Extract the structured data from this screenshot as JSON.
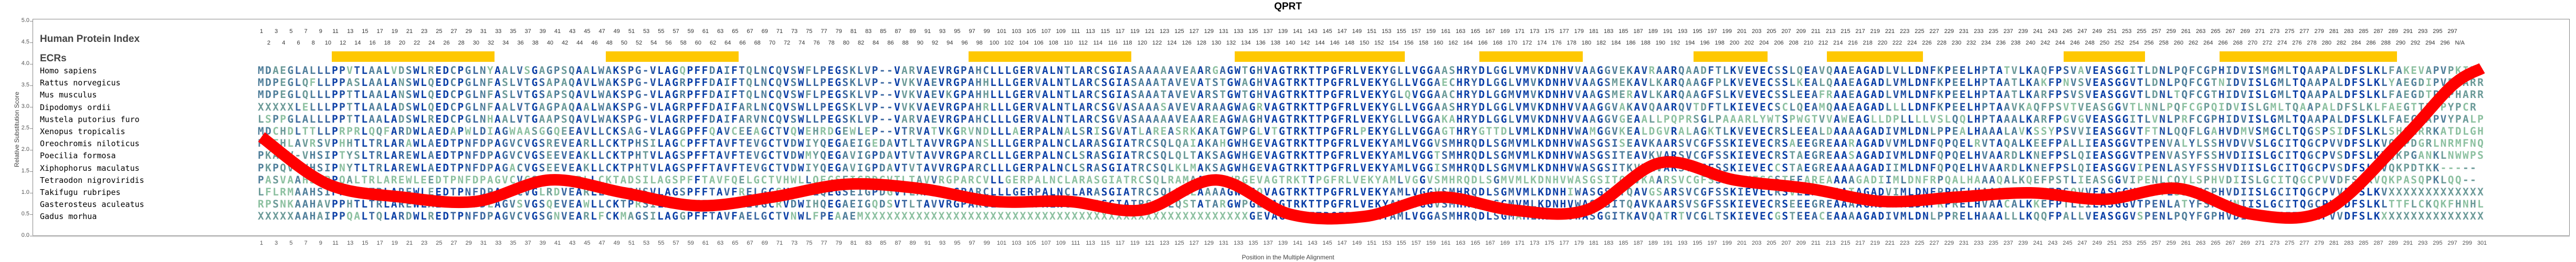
{
  "title": "QPRT",
  "headers": {
    "index_label": "Human Protein Index",
    "ecr_label": "ECRs"
  },
  "species": [
    {
      "name": "Homo sapiens",
      "seq": "MDAEGLALLLPPVTLAALVDSWLREDCPGLNYAALVSGAGPSQAALWAKSPG-VLAGQPFFDAIFTQLNCQVSWFLPEGSKLVP--VARVAEVRGPAHCLLLGERVALNTLARCSGIASAAAAAVEAARGAGWTGHVAGTRKTTPGFRLVEKYGLLVGGAASHRYDLGGLVMVKDNHVVAAGGVEKAVRAARQAADFTLKVEVECSSLQEAVQAAEAGADLVLLDNFKPEELHPTATVLKAQFPSVAVEASGGITLDNLPQFCGPHIDVISMGMLTQAAPALDFSLKLFAKEVAPVPKIH-"
    },
    {
      "name": "Rattus norvegicus",
      "seq": "MDPEGLQFLLPPASLAALANSWLQEDCPGLNFASLVTGSAPAQAVLWAKSPG-VLAGRPFFDAIFTQLNCQVSWLLPEGSKLVP--VVKVAEVRGPAHHLLLGERVALNTLARCSGIASAAATAVEVATSTGWAGHVAGTRKTTPGFRLVEKYGLLVGGAECHRYDLGGLVMVKDNHVVAAGSMEKAVLKARQAAGFPLKVEVECSSLKEALQAAEAGADLVMLDNFKPEELHPTAATLKAKFPNVSVEASGGVTLDNLPQFCGTNIDVISLGMLTQAAPALDFSLKLYAEGDIPVPHARR"
    },
    {
      "name": "Mus musculus",
      "seq": "MDPEGLQLLLPPTTLAALANSWLQEDCPGLNFASLVTGSAPSQAVLWAKSPG-VLAGRPFFDAIFTQLNCQVSWFLPEGSKLVP--VVKVAEVKGPAHHLLLGERVALNTLARCSGIASAAATAVEVARSTGWTGHVAGTRKTTPGFRLVEKYGLQVGGAACHRYDLGGMVMVKDNHVVAAGSMERAVLKARQAAGFSLKVEVECSSLEEAFRAAEAGADLVMLDNFKPEELHPTAATLKARFPSVSVEASGGVTLDNLTQFCGTHIDVISLGMLTQAAPALDFSLKLFAEGDTPVPHARR"
    },
    {
      "name": "Dipodomys ordii",
      "seq": "XXXXXLELLLPPTTLAALADSWLQEDCPGLNFAALVTGAGPAQAALWAKSPG-VLAGRPFFDAIFARLNCQVSWLLPEGSKLVP--VVKVAEVRGPAHRLLLGERVALNTLARCSGVASAAASAVEVARAAGWAGRVAGTRKTTPGFRLVEKYGLLVGGAASHRYDLGGLVMVKDNHVVAAGGVAKAVQAARQVTDFTLKIEVECSCLQEAMQAAEAGADLLLLDNFKPEELHPTAAVKAQFPSVTVEASGGVTLNNLPQFCGPQIDVISLGMLTQAAPALDFSLKLFAEGTTPVPYPCR"
    },
    {
      "name": "Mustela putorius furo",
      "seq": "LSPPGLALLLPPTTLAALADSWLREDCPGLNHAALVTGAAPSQAVLWAKSPG-VLAGRPFFDAIFARVNCQVSWLLPEGSKLVP--VARVAEVRGPAHCLLLGERVALNTLARCSGVASAAAAAVEAAREAGWAGHVAGTRKTTPGFRLVEKYGLLVGGAKAHRYDLGGLVMVKDNHVVAAGGVGEAALLPQPRSGLPAAARLYWTSPWGTVVAWEAGLLDPLLLLVSLQQLHPTAAALKARFPGVGVEASGGITLVNLPRFCGPHIDVISLGMLTQAAPALDFSLKLFAEGTAPVYPALP"
    },
    {
      "name": "Xenopus tropicalis",
      "seq": "MDCHDLTTLLPRPRLQQFARDWLAEDAPWLDIAGWAASGGQEEAVLLCKSAG-VLAGGPFFQAVCEEAGCTVQWEHRDGEWLEP--VTRVATVKGRVNDLLLAERPALNALSRISGVATLAREASRKAKATGWPGLVTGTRKTTPGFRLPEKYGLLVGGAGTHRYGTTDLVMLKDNHVWAMGGVKEALDGVRALAGKTLKVEVECRSLEEALDAAAAGADIVMLDNLPPEALHAAALAVKSSYPSVVIEASGGVTFTNLQQFLGAHVDMVSMGCLTQGSPSIDFSLKLSHGLRRKATDLGH"
    },
    {
      "name": "Oreochromis niloticus",
      "seq": "PCEHLAVRSVPHHTLTRLARAWLAEDTPNFDPAGVCVGSREVEARLLCKTPHSILAGCPFFTAVFTEVGCTVDWIYQEGAEIGEDAVTLTAVVRGPANSLLLGERPALNCLARASGIATRCSQLQAIAKAHGWHGEVAGTRKTTPGFRLVEKYAMLVGGVSMHRQDLSGMVMLKDNHVWASGSISEAVKAARSVCGFSSKIEVECRSAEEGREAARAGADVVMLDNFQPQELRVTAQALKEEFPALLIEASGGVTPENVALYLSSHVDVVSLGCITQGCPVVDFSLKVQKPDGRLNRMFNQ"
    },
    {
      "name": "Poecilia formosa",
      "seq": "PKAQV-VHSIPTYSLTRLAREWLAEDTPNFDPAGVCVGSEEVEAKLLCKTPHTVLAGSPFFTAVFTEVGCTVDWMYQEGAVIGPDAVTVTAVVRGPARCLLLGERPALNCLSRASGIATRCSQLQLTAKSAGWHGEVAGTRKTTPGFRLVEKYAMLVGGTSMHRQDLSGMVMLKDNHVWASGSITEAVKVARSVCGFSSKIEVECRSTAEGREAASAGADIVMLDNFQPQELHVAARDLKNEFPSLQIEASGGVTPENVASYFSSHVDIISLGCITQGCPVSDFSLKVQKPGANKLNWWPS"
    },
    {
      "name": "Xiphophorus maculatus",
      "seq": "PKPQV-VHSIPNYTLTRLAREWLAEDTPNFDPAGACVGSEEVEAKLLCKTPHTVLAGSPFFTAVFTEVGCTVDWIYQEGAVIGPDAVTVTAVVRGPARCLLLGERPALNCLSRASGIATRCSQLKLMAKSAGWHGEVAGTRKTTPGFRLVEKYAMLVGGISMHRQDLSGMVMLKDNHVWASGSITKVVKVARSVCGFSSKIEVECCSTAEGREAAAAGADIIMLDNFQPQELHVAARDLKNEFPSLQIEASGGVIPENLASYFSSHVDIISLGCITQGCPVSDFSLKVQKPDTKK-----"
    },
    {
      "name": "Tetraodon nigroviridis",
      "seq": "PASVAAHSIPPQALTRLAREWLEEDTPNFDPAGVCVGSREVEARLLCKTADSILAGSPFFTAVFQELGCTVHWLLQEGSEIGPDGVTLTAVVRGPARCVLLGERPALNCLARASGIATRCSQLRAMAAASGWRGEVAGTRKTTPGFRLVEKYAMLVGGVSMHRQDLSGMVMLKDNHVWASGSITQAVKAARSVCGFSSRIEVESGSTEEAREAAAAGADIIMLDNFRPQALHAAAQALKQEFPSTLIEASGGVIPENLCQYLSPHVDIISLGCITQGCPVVDFSLKVQKPASQPKLQQ--"
    },
    {
      "name": "Takifugu rubripes",
      "seq": "LFLRMAAHSIPPHTLTRLAREWLEEDTPNFDPAGVCVGLRDVEARLLCKTPHSVLAGSPFFTAVFRELGCSVHWLLQEGSEIGPDGVTLAAVVRGPARCLLLGERPALNCLARASGIATRCSQLRALAAAAGWHGQVAGTRKTTPGFRLVEKYAMLVGGVSMHRQDLSGMVMLKDNHIWASGSITQAVGSARSVCGFSSKIEVECRSVEEASEAATAGADVIMLDNFPPQELHAAAQALKREFPSQVVEASGGVTPETLSSYFSPHVDIISLGCITQGCPVVDFSLKVXXXXXXXXXXXXX"
    },
    {
      "name": "Gasterosteus aculeatus",
      "seq": "RPSNKAAHAVPPHTLTRLAREWLAEDTPNFDLAGVSVGSQEVEAWLLCKTPRSILAGSPFFTAVFAEVGCRVDWIHQEGAEIGQDSVTLTAVVRGPARCLLLGERPALNCLARASGIATRSSLLQSTATARGWPGEVAGTRKTTPGFRLVEKYAMLVGGVSMHRQDLSGMVMLKDNHVWASGSITQAVKAARSVSGFSSKIEVECRSEEEGREAAAAGADIVMLDNFRPRELHVAACALKKEFPTLLIEASGGVTPENLATYFSPHVNIISLGCITQGCPVVDFSLKLTTFLCKQKFHNHL"
    },
    {
      "name": "Gadus morhua",
      "seq": "XXXXXAAHAIPPQALTQLARDWLREDTPNFDPAGVCVGSGNVEARLFCKMAGSILAGGPFFTAVFAELGCTVNWLFPEAAEMXXXXXXXXXXXXXXXXXXXXXXXXXXXXXXXXXXXXXXXXXXXXXXXXXXXXGEVAGTRKTTPGFRLVEKYAMLVGGASMHRQDLSGMAMLKDNHVWASGGITKAVQATRTVCGLTSKIEVECGSTEEACEAAAAGADIVMLDNLPPRELHAAALLLKQQFPALLVEASGGVSPENLPQYFGPHVDIISLGCITQGCPVVDFSLKXXXXXXXXXXXXXX"
    }
  ],
  "colors": {
    "accent": "#ffc800",
    "curve": "#ff0000",
    "conserved": "#0a3ea6",
    "variable": "#8cc0a0"
  },
  "chart_data": {
    "type": "line",
    "title": "QPRT",
    "xlabel": "Position in the Multiple Alignment",
    "ylabel": "Relative Substitution Score",
    "ylim": [
      0.0,
      5.0
    ],
    "yticks": [
      "0.0",
      "0.5",
      "1.0",
      "1.5",
      "2.0",
      "2.5",
      "3.0",
      "3.5",
      "4.0",
      "4.5",
      "5.0"
    ],
    "xlim": [
      1,
      301
    ],
    "x": [
      1,
      10,
      20,
      30,
      40,
      50,
      60,
      70,
      80,
      90,
      100,
      110,
      120,
      130,
      140,
      150,
      160,
      170,
      180,
      190,
      200,
      210,
      220,
      230,
      240,
      250,
      260,
      270,
      280,
      290,
      297,
      301
    ],
    "series": [
      {
        "name": "Relative Substitution Score",
        "values": [
          2.3,
          1.2,
          0.9,
          0.8,
          1.3,
          1.0,
          0.7,
          0.9,
          1.2,
          1.1,
          0.8,
          0.8,
          0.6,
          1.3,
          0.5,
          0.45,
          0.9,
          0.6,
          0.6,
          1.7,
          1.3,
          1.1,
          0.8,
          0.9,
          1.0,
          0.85,
          1.1,
          0.5,
          0.6,
          2.2,
          3.5,
          3.9
        ]
      }
    ],
    "ecr_segments": [
      [
        11,
        32
      ],
      [
        48,
        65
      ],
      [
        97,
        118
      ],
      [
        133,
        155
      ],
      [
        166,
        179
      ],
      [
        195,
        204
      ],
      [
        213,
        225
      ],
      [
        245,
        255
      ],
      [
        266,
        289
      ]
    ],
    "grid": false
  }
}
